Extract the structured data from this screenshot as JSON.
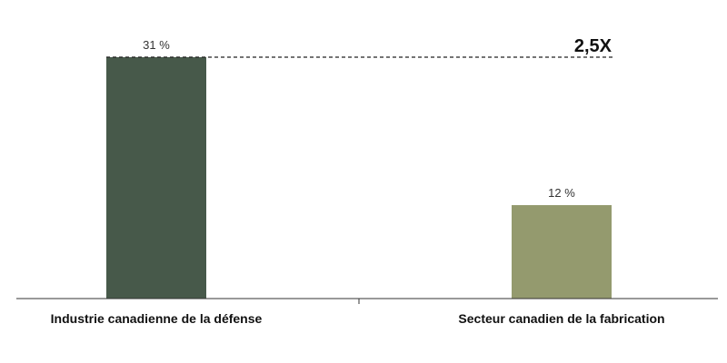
{
  "chart_data": {
    "type": "bar",
    "categories": [
      "Industrie canadienne de la défense",
      "Secteur canadien de la fabrication"
    ],
    "values": [
      31,
      12
    ],
    "value_labels": [
      "31 %",
      "12 %"
    ],
    "colors": [
      "#47594a",
      "#949a6e"
    ],
    "ylim": [
      0,
      31
    ],
    "grid": false,
    "reference_line": {
      "value": 31,
      "style": "dashed",
      "label": "2,5X"
    },
    "title": "",
    "xlabel": "",
    "ylabel": ""
  }
}
